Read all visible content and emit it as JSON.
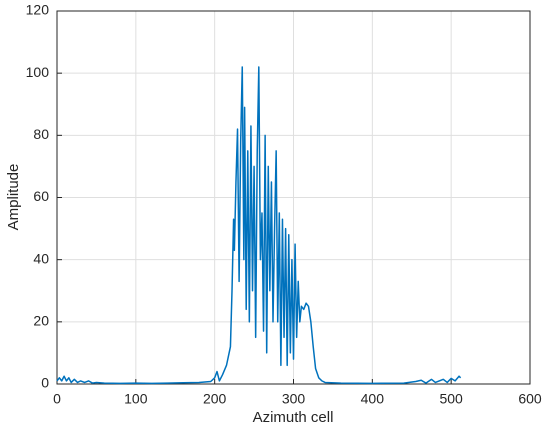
{
  "chart_data": {
    "type": "line",
    "xlabel": "Azimuth cell",
    "ylabel": "Amplitude",
    "xlim": [
      0,
      600
    ],
    "xticks": [
      0,
      100,
      200,
      300,
      400,
      500,
      600
    ],
    "ylim": [
      0,
      120
    ],
    "yticks": [
      0,
      20,
      40,
      60,
      80,
      100,
      120
    ],
    "grid": true,
    "series": [
      {
        "color": "#0072bd",
        "x": [
          0,
          3,
          6,
          9,
          12,
          15,
          18,
          22,
          26,
          30,
          35,
          40,
          45,
          50,
          60,
          80,
          100,
          120,
          140,
          160,
          180,
          195,
          200,
          203,
          206,
          210,
          215,
          220,
          222,
          224,
          225,
          227,
          229,
          231,
          233,
          235,
          237,
          238,
          240,
          242,
          244,
          246,
          248,
          250,
          252,
          254,
          256,
          258,
          260,
          262,
          264,
          266,
          268,
          270,
          272,
          274,
          276,
          278,
          280,
          282,
          284,
          286,
          288,
          290,
          292,
          294,
          296,
          298,
          300,
          302,
          304,
          306,
          308,
          310,
          313,
          316,
          319,
          322,
          325,
          328,
          332,
          336,
          340,
          360,
          400,
          440,
          455,
          462,
          468,
          475,
          480,
          490,
          495,
          500,
          505,
          510,
          512
        ],
        "values": [
          1,
          2,
          1,
          2.5,
          1,
          2,
          0.5,
          1.5,
          0.5,
          1,
          0.5,
          1,
          0.3,
          0.5,
          0.3,
          0.2,
          0.3,
          0.2,
          0.3,
          0.4,
          0.5,
          0.8,
          2,
          4,
          1,
          3,
          6,
          12,
          30,
          53,
          43,
          65,
          82,
          33,
          78,
          102,
          40,
          89,
          24,
          75,
          20,
          83,
          30,
          70,
          15,
          75,
          102,
          40,
          55,
          17,
          80,
          10,
          70,
          30,
          65,
          20,
          50,
          75,
          20,
          55,
          6,
          53,
          15,
          50,
          6,
          48,
          10,
          40,
          8,
          45,
          15,
          33,
          20,
          25,
          24,
          26,
          25,
          20,
          12,
          5,
          2,
          1,
          0.5,
          0.3,
          0.2,
          0.3,
          0.8,
          1.2,
          0.3,
          1.5,
          0.5,
          1.5,
          0.5,
          1.8,
          1,
          2.5,
          2
        ]
      }
    ]
  }
}
